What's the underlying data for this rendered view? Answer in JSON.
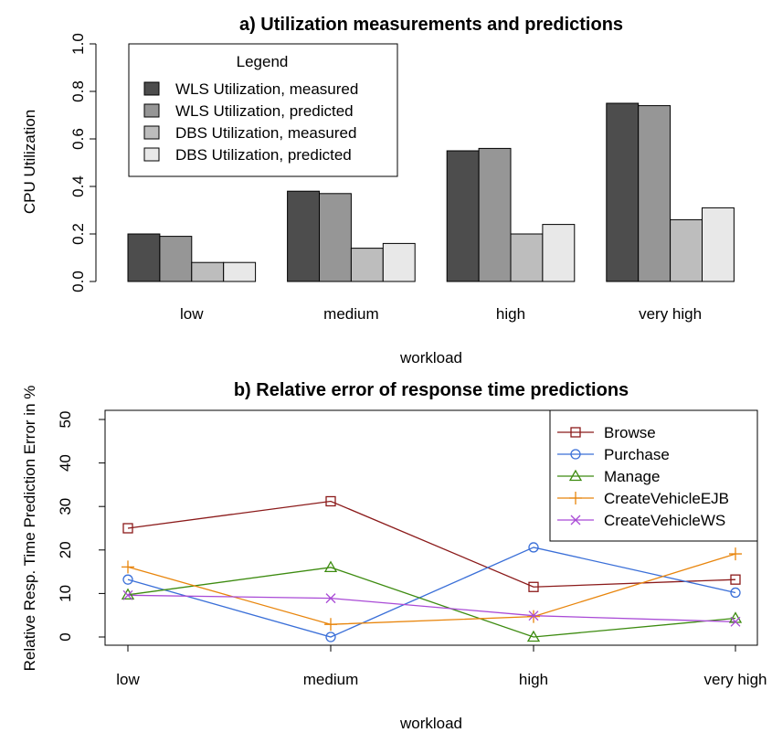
{
  "chart_data": [
    {
      "type": "bar",
      "title": "a) Utilization measurements and predictions",
      "xlabel": "workload",
      "ylabel": "CPU Utilization",
      "ylim": [
        0,
        1.0
      ],
      "yticks": [
        "0.0",
        "0.2",
        "0.4",
        "0.6",
        "0.8",
        "1.0"
      ],
      "categories": [
        "low",
        "medium",
        "high",
        "very high"
      ],
      "legend": {
        "title": "Legend",
        "placement": "top-left"
      },
      "series": [
        {
          "name": "WLS Utilization, measured",
          "color": "#4d4d4d",
          "values": [
            0.2,
            0.38,
            0.55,
            0.75
          ]
        },
        {
          "name": "WLS Utilization, predicted",
          "color": "#969696",
          "values": [
            0.19,
            0.37,
            0.56,
            0.74
          ]
        },
        {
          "name": "DBS Utilization, measured",
          "color": "#bdbdbd",
          "values": [
            0.08,
            0.14,
            0.2,
            0.26
          ]
        },
        {
          "name": "DBS Utilization, predicted",
          "color": "#e8e8e8",
          "values": [
            0.08,
            0.16,
            0.24,
            0.31
          ]
        }
      ]
    },
    {
      "type": "line",
      "title": "b) Relative error of response time predictions",
      "xlabel": "workload",
      "ylabel": "Relative Resp. Time Prediction Error in %",
      "ylim": [
        0,
        50
      ],
      "yticks": [
        "0",
        "10",
        "20",
        "30",
        "40",
        "50"
      ],
      "categories": [
        "low",
        "medium",
        "high",
        "very high"
      ],
      "legend": {
        "placement": "top-right"
      },
      "series": [
        {
          "name": "Browse",
          "color": "#8b1a1a",
          "marker": "square",
          "values": [
            25,
            31.2,
            11.5,
            13.2
          ]
        },
        {
          "name": "Purchase",
          "color": "#3a6fd8",
          "marker": "circle",
          "values": [
            13.2,
            0,
            20.6,
            10.2
          ]
        },
        {
          "name": "Manage",
          "color": "#3d8b10",
          "marker": "triangle",
          "values": [
            9.7,
            16,
            0,
            4.3
          ]
        },
        {
          "name": "CreateVehicleEJB",
          "color": "#e8850c",
          "marker": "plus",
          "values": [
            16.1,
            2.9,
            4.7,
            19.1
          ]
        },
        {
          "name": "CreateVehicleWS",
          "color": "#a94ad6",
          "marker": "cross",
          "values": [
            9.6,
            8.9,
            4.9,
            3.5
          ]
        }
      ]
    }
  ]
}
